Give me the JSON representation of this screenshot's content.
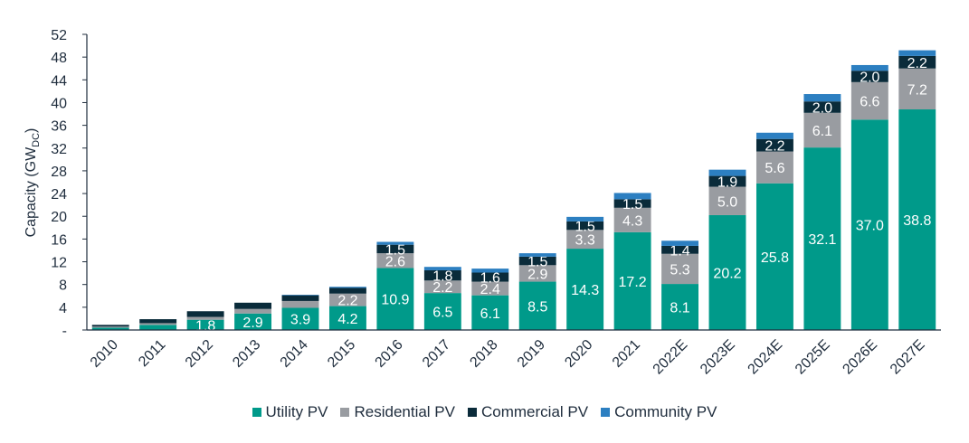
{
  "chart_data": {
    "type": "bar",
    "stacked": true,
    "ylabel": "Capacity (GW",
    "ylabel_subscript": "DC",
    "ylabel_close": ")",
    "ylim": [
      0,
      52
    ],
    "yticks": [
      0,
      4,
      8,
      12,
      16,
      20,
      24,
      28,
      32,
      36,
      40,
      44,
      48,
      52
    ],
    "ytick_labels": [
      "-",
      "4",
      "8",
      "12",
      "16",
      "20",
      "24",
      "28",
      "32",
      "36",
      "40",
      "44",
      "48",
      "52"
    ],
    "categories": [
      "2010",
      "2011",
      "2012",
      "2013",
      "2014",
      "2015",
      "2016",
      "2017",
      "2018",
      "2019",
      "2020",
      "2021",
      "2022E",
      "2023E",
      "2024E",
      "2025E",
      "2026E",
      "2027E"
    ],
    "series": [
      {
        "name": "Utility PV",
        "color": "#009a8a",
        "values": [
          0.4,
          0.9,
          1.8,
          2.9,
          3.9,
          4.2,
          10.9,
          6.5,
          6.1,
          8.5,
          14.3,
          17.2,
          8.1,
          20.2,
          25.8,
          32.1,
          37.0,
          38.8
        ],
        "labels": [
          "",
          "",
          "1.8",
          "2.9",
          "3.9",
          "4.2",
          "10.9",
          "6.5",
          "6.1",
          "8.5",
          "14.3",
          "17.2",
          "8.1",
          "20.2",
          "25.8",
          "32.1",
          "37.0",
          "38.8"
        ]
      },
      {
        "name": "Residential PV",
        "color": "#999ca1",
        "values": [
          0.2,
          0.3,
          0.5,
          0.8,
          1.2,
          2.2,
          2.6,
          2.2,
          2.4,
          2.9,
          3.3,
          4.3,
          5.3,
          5.0,
          5.6,
          6.1,
          6.6,
          7.2
        ],
        "labels": [
          "",
          "",
          "",
          "",
          "",
          "2.2",
          "2.6",
          "2.2",
          "2.4",
          "2.9",
          "3.3",
          "4.3",
          "5.3",
          "5.0",
          "5.6",
          "6.1",
          "6.6",
          "7.2"
        ]
      },
      {
        "name": "Commercial PV",
        "color": "#0a2b3a",
        "values": [
          0.3,
          0.7,
          1.0,
          1.1,
          1.0,
          1.0,
          1.5,
          1.8,
          1.6,
          1.5,
          1.5,
          1.5,
          1.4,
          1.9,
          2.2,
          2.0,
          2.0,
          2.2
        ],
        "labels": [
          "",
          "",
          "",
          "",
          "",
          "",
          "1.5",
          "1.8",
          "1.6",
          "1.5",
          "1.5",
          "1.5",
          "1.4",
          "1.9",
          "2.2",
          "2.0",
          "2.0",
          "2.2"
        ]
      },
      {
        "name": "Community PV",
        "color": "#2c7fc1",
        "values": [
          0.0,
          0.0,
          0.0,
          0.0,
          0.1,
          0.2,
          0.5,
          0.6,
          0.7,
          0.6,
          0.8,
          1.1,
          0.9,
          1.1,
          1.1,
          1.3,
          1.0,
          1.0
        ],
        "labels": []
      }
    ],
    "legend_position": "bottom",
    "grid": false
  }
}
